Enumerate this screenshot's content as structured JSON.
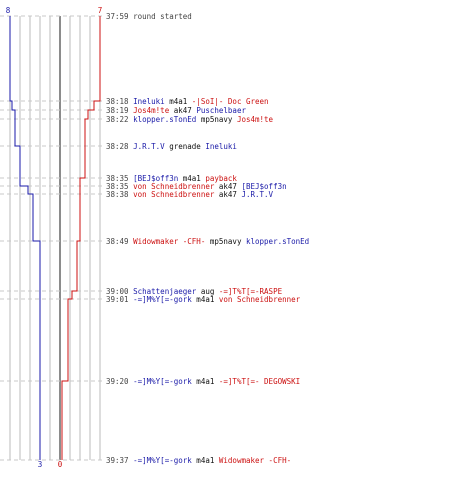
{
  "colors": {
    "blue": "#1a1aa8",
    "red": "#cc1111",
    "grid": "#bbbbbb",
    "grid_center": "#666666",
    "dash": "#c8c8c8",
    "time": "#444444",
    "neutral": "#111111"
  },
  "header": {
    "blue_start": "8",
    "red_start": "7",
    "blue_end": "3",
    "red_end": "0"
  },
  "chart_data": {
    "type": "line",
    "series": [
      {
        "team": "blue",
        "start": 8,
        "end": 3
      },
      {
        "team": "red",
        "start": 7,
        "end": 0
      }
    ]
  },
  "events": [
    {
      "time": "37:59",
      "parts": [
        {
          "text": "round started",
          "color": "time"
        }
      ]
    },
    {
      "time": "38:18",
      "parts": [
        {
          "text": "Ineluki",
          "color": "blue"
        },
        {
          "text": " m4a1 ",
          "color": "neutral"
        },
        {
          "text": "-|SoI|- Doc Green",
          "color": "red"
        }
      ]
    },
    {
      "time": "38:19",
      "parts": [
        {
          "text": "Jos4m!te",
          "color": "red"
        },
        {
          "text": " ak47 ",
          "color": "neutral"
        },
        {
          "text": "Puschelbaer",
          "color": "blue"
        }
      ]
    },
    {
      "time": "38:22",
      "parts": [
        {
          "text": "klopper.sTonEd",
          "color": "blue"
        },
        {
          "text": " mp5navy ",
          "color": "neutral"
        },
        {
          "text": "Jos4m!te",
          "color": "red"
        }
      ]
    },
    {
      "time": "38:28",
      "parts": [
        {
          "text": "J.R.T.V",
          "color": "blue"
        },
        {
          "text": " grenade ",
          "color": "neutral"
        },
        {
          "text": "Ineluki",
          "color": "blue"
        }
      ]
    },
    {
      "time": "38:35",
      "parts": [
        {
          "text": "[BEJ$off3n",
          "color": "blue"
        },
        {
          "text": " m4a1 ",
          "color": "neutral"
        },
        {
          "text": "payback",
          "color": "red"
        }
      ]
    },
    {
      "time": "38:35",
      "parts": [
        {
          "text": "von Schneidbrenner",
          "color": "red"
        },
        {
          "text": " ak47 ",
          "color": "neutral"
        },
        {
          "text": "[BEJ$off3n",
          "color": "blue"
        }
      ]
    },
    {
      "time": "38:38",
      "parts": [
        {
          "text": "von Schneidbrenner",
          "color": "red"
        },
        {
          "text": " ak47 ",
          "color": "neutral"
        },
        {
          "text": "J.R.T.V",
          "color": "blue"
        }
      ]
    },
    {
      "time": "38:49",
      "parts": [
        {
          "text": "Widowmaker -CFH-",
          "color": "red"
        },
        {
          "text": " mp5navy ",
          "color": "neutral"
        },
        {
          "text": "klopper.sTonEd",
          "color": "blue"
        }
      ]
    },
    {
      "time": "39:00",
      "parts": [
        {
          "text": "Schattenjaeger",
          "color": "blue"
        },
        {
          "text": " aug ",
          "color": "neutral"
        },
        {
          "text": "-=]T%T[=-RASPE",
          "color": "red"
        }
      ]
    },
    {
      "time": "39:01",
      "parts": [
        {
          "text": "-=]M%Y[=-gork",
          "color": "blue"
        },
        {
          "text": " m4a1 ",
          "color": "neutral"
        },
        {
          "text": "von Schneidbrenner",
          "color": "red"
        }
      ]
    },
    {
      "time": "39:20",
      "parts": [
        {
          "text": "-=]M%Y[=-gork",
          "color": "blue"
        },
        {
          "text": " m4a1 ",
          "color": "neutral"
        },
        {
          "text": "-=]T%T[=- DEGOWSKI",
          "color": "red"
        }
      ]
    },
    {
      "time": "39:37",
      "parts": [
        {
          "text": "-=]M%Y[=-gork",
          "color": "blue"
        },
        {
          "text": " m4a1 ",
          "color": "neutral"
        },
        {
          "text": "Widowmaker -CFH-",
          "color": "red"
        }
      ]
    }
  ]
}
